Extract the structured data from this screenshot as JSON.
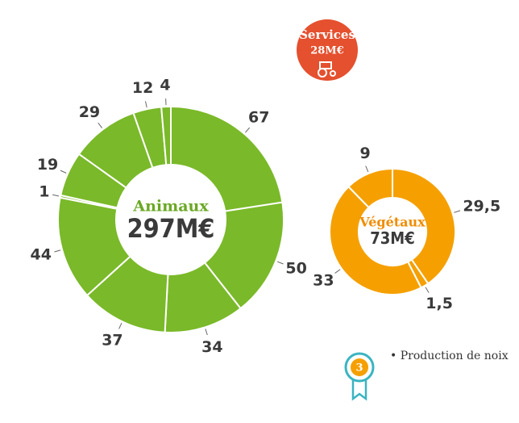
{
  "chart_data": [
    {
      "type": "donut",
      "title": "Animaux",
      "total_label": "297M€",
      "color": "#7ab929",
      "title_color": "#6aa824",
      "values": [
        67,
        50,
        34,
        37,
        44,
        1,
        19,
        29,
        12,
        4
      ]
    },
    {
      "type": "donut",
      "title": "Végétaux",
      "total_label": "73M€",
      "color": "#f5a000",
      "title_color": "#f08c00",
      "values": [
        29.5,
        1.5,
        33,
        9
      ],
      "value_labels": [
        "29,5",
        "1,5",
        "33",
        "9"
      ]
    }
  ],
  "services": {
    "title": "Services",
    "amount": "28M€",
    "color": "#e5502e"
  },
  "badge": {
    "number": "3",
    "text": "• Production de noix"
  }
}
